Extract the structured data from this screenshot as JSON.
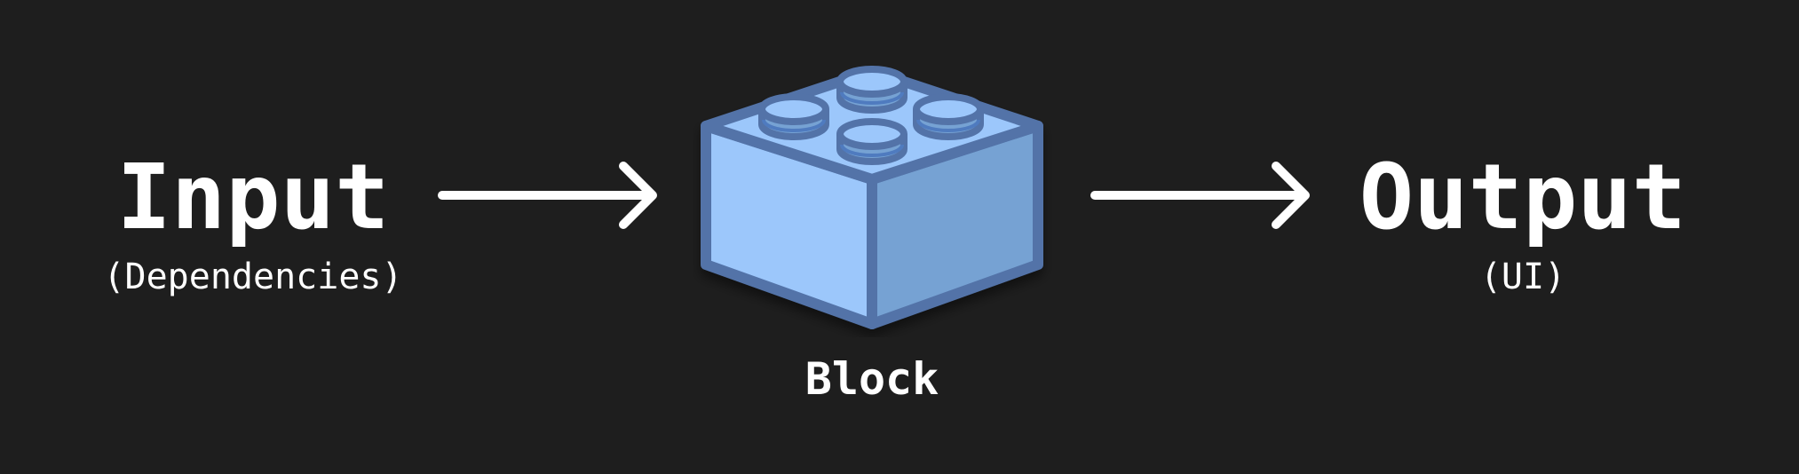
{
  "input": {
    "title": "Input",
    "subtitle": "(Dependencies)"
  },
  "block": {
    "label": "Block",
    "colors": {
      "stroke": "#5373a8",
      "top": "#9cc7fb",
      "left": "#9cc7fb",
      "right": "#76a2d3",
      "stud_inner": "#4f7bbf"
    }
  },
  "output": {
    "title": "Output",
    "subtitle": "(UI)"
  },
  "colors": {
    "background": "#1e1e1e",
    "text": "#ffffff",
    "arrow": "#ffffff"
  }
}
